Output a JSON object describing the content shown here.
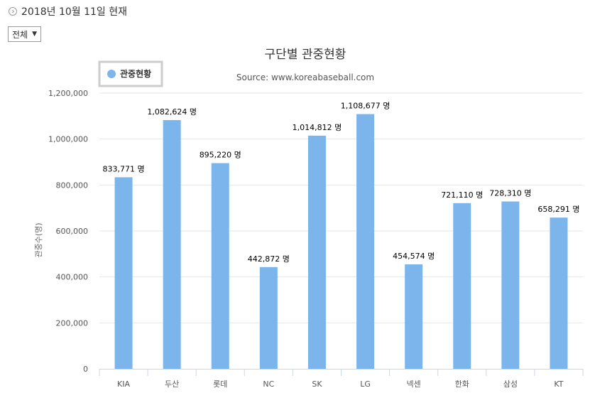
{
  "header": {
    "date_text": "2018년 10월 11일 현재",
    "filter_label": "전체",
    "filter_arrow": "▼"
  },
  "chart_data": {
    "type": "bar",
    "title": "구단별 관중현황",
    "subtitle": "Source: www.koreabaseball.com",
    "ylabel": "관중수(명)",
    "xlabel": "",
    "categories": [
      "KIA",
      "두산",
      "롯데",
      "NC",
      "SK",
      "LG",
      "넥센",
      "한화",
      "삼성",
      "KT"
    ],
    "series": [
      {
        "name": "관중현황",
        "values": [
          833771,
          1082624,
          895220,
          442872,
          1014812,
          1108677,
          454574,
          721110,
          728310,
          658291
        ]
      }
    ],
    "data_labels": [
      "833,771 명",
      "1,082,624 명",
      "895,220 명",
      "442,872 명",
      "1,014,812 명",
      "1,108,677 명",
      "454,574 명",
      "721,110 명",
      "728,310 명",
      "658,291 명"
    ],
    "yticks": [
      "0",
      "200,000",
      "400,000",
      "600,000",
      "800,000",
      "1,000,000",
      "1,200,000"
    ],
    "ylim": [
      0,
      1200000
    ],
    "legend_position": "top-left",
    "grid": true,
    "bar_color": "#7cb5ec"
  }
}
